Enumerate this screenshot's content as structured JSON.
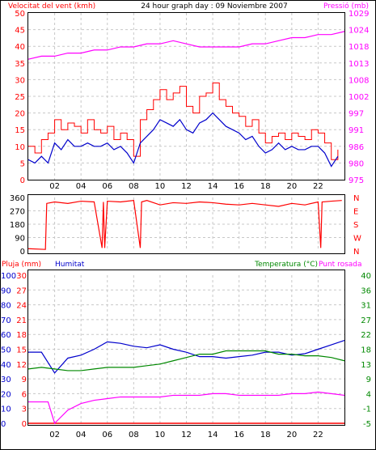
{
  "header": {
    "left_title": "Velocitat del vent (kmh)",
    "center_title": "24 hour graph day : 09 Noviembre 2007",
    "right_title": "Pressió (mb)"
  },
  "colors": {
    "wind": "#ff0000",
    "wind_avg": "#0000cc",
    "pressure": "#ff00ff",
    "direction": "#ff0000",
    "rain": "#ff0000",
    "humidity": "#0000cc",
    "temperature": "#008800",
    "dewpoint": "#ff00ff",
    "left_axis_text": "#ff0000",
    "right_axis_text": "#ff00ff",
    "hum_axis_text": "#0000cc",
    "temp_axis_text": "#008800",
    "grid": "#c8c8c8",
    "frame": "#000000"
  },
  "chart_data": [
    {
      "type": "line",
      "title": "24 hour graph day : 09 Noviembre 2007",
      "ylabel": "Velocitat del vent (kmh)",
      "y2label": "Pressió (mb)",
      "x_ticks": [
        "02",
        "04",
        "06",
        "08",
        "10",
        "12",
        "14",
        "16",
        "18",
        "20",
        "22"
      ],
      "y_ticks": [
        0,
        5,
        10,
        15,
        20,
        25,
        30,
        35,
        40,
        45,
        50
      ],
      "y2_ticks": [
        975,
        980,
        986,
        991,
        997,
        1002,
        1008,
        1013,
        1018,
        1024,
        1029
      ],
      "ylim": [
        0,
        50
      ],
      "y2lim": [
        975,
        1029
      ],
      "xlim": [
        0,
        24
      ],
      "grid": true,
      "series": [
        {
          "axis": "left",
          "x": [
            0,
            0.5,
            1,
            1.5,
            2,
            2.5,
            3,
            3.5,
            4,
            4.5,
            5,
            5.5,
            6,
            6.5,
            7,
            7.5,
            8,
            8.5,
            9,
            9.5,
            10,
            10.5,
            11,
            11.5,
            12,
            12.5,
            13,
            13.5,
            14,
            14.5,
            15,
            15.5,
            16,
            16.5,
            17,
            17.5,
            18,
            18.5,
            19,
            19.5,
            20,
            20.5,
            21,
            21.5,
            22,
            22.5,
            23,
            23.5
          ],
          "values": [
            10,
            8,
            12,
            14,
            18,
            15,
            17,
            16,
            14,
            18,
            15,
            14,
            16,
            12,
            14,
            12,
            7,
            18,
            21,
            24,
            27,
            24,
            26,
            28,
            22,
            20,
            25,
            26,
            29,
            24,
            22,
            20,
            19,
            16,
            18,
            14,
            11,
            13,
            14,
            12,
            14,
            13,
            12,
            15,
            14,
            11,
            6,
            9
          ]
        },
        {
          "axis": "left",
          "x": [
            0,
            0.5,
            1,
            1.5,
            2,
            2.5,
            3,
            3.5,
            4,
            4.5,
            5,
            5.5,
            6,
            6.5,
            7,
            7.5,
            8,
            8.5,
            9,
            9.5,
            10,
            10.5,
            11,
            11.5,
            12,
            12.5,
            13,
            13.5,
            14,
            14.5,
            15,
            15.5,
            16,
            16.5,
            17,
            17.5,
            18,
            18.5,
            19,
            19.5,
            20,
            20.5,
            21,
            21.5,
            22,
            22.5,
            23,
            23.5
          ],
          "values": [
            6,
            5,
            7,
            5,
            11,
            9,
            12,
            10,
            10,
            11,
            10,
            10,
            11,
            9,
            10,
            8,
            5,
            11,
            13,
            15,
            18,
            17,
            16,
            18,
            15,
            14,
            17,
            18,
            20,
            18,
            16,
            15,
            14,
            12,
            13,
            10,
            8,
            9,
            11,
            9,
            10,
            9,
            9,
            10,
            10,
            8,
            4,
            7
          ]
        },
        {
          "axis": "right",
          "x": [
            0,
            1,
            2,
            3,
            4,
            5,
            6,
            7,
            8,
            9,
            10,
            11,
            12,
            13,
            14,
            15,
            16,
            17,
            18,
            19,
            20,
            21,
            22,
            23,
            24
          ],
          "values": [
            1014,
            1015,
            1015,
            1016,
            1016,
            1017,
            1017,
            1018,
            1018,
            1019,
            1019,
            1020,
            1019,
            1018,
            1018,
            1018,
            1018,
            1019,
            1019,
            1020,
            1021,
            1021,
            1022,
            1022,
            1023
          ]
        }
      ]
    },
    {
      "type": "line",
      "ylabel": "",
      "y_ticks": [
        0,
        90,
        180,
        270,
        360
      ],
      "y2_ticks": [
        "N",
        "W",
        "S",
        "E",
        "N"
      ],
      "ylim": [
        0,
        360
      ],
      "xlim": [
        0,
        24
      ],
      "grid": true,
      "series": [
        {
          "x": [
            0,
            1.3,
            1.4,
            2,
            3,
            4,
            5,
            5.6,
            5.7,
            5.8,
            6,
            7,
            8,
            8.5,
            8.6,
            9,
            10,
            11,
            12,
            13,
            14,
            15,
            16,
            17,
            18,
            19,
            20,
            21,
            22,
            22.2,
            22.3,
            23,
            23.8
          ],
          "values": [
            15,
            10,
            320,
            330,
            320,
            335,
            330,
            20,
            330,
            20,
            335,
            330,
            340,
            20,
            330,
            340,
            310,
            325,
            320,
            330,
            325,
            315,
            310,
            320,
            310,
            300,
            320,
            310,
            330,
            20,
            330,
            335,
            340
          ]
        }
      ]
    },
    {
      "type": "line",
      "legend": [
        "Pluja (mm)",
        "Humitat",
        "Temperatura (°C)",
        "Punt rosada"
      ],
      "y_ticks_rain": [
        0,
        3,
        6,
        9,
        12,
        15,
        18,
        21,
        24,
        27,
        30
      ],
      "y_ticks_humidity": [
        0,
        10,
        20,
        30,
        40,
        50,
        60,
        70,
        80,
        90,
        100
      ],
      "y_ticks_temp": [
        -5,
        -1,
        4,
        9,
        13,
        18,
        22,
        27,
        31,
        36,
        40
      ],
      "ylim_rain": [
        0,
        30
      ],
      "ylim_humidity": [
        0,
        100
      ],
      "ylim_temp": [
        -5,
        40
      ],
      "xlim": [
        0,
        24
      ],
      "grid": true,
      "series": [
        {
          "name": "Pluja (mm)",
          "axis": "rain",
          "x": [
            0,
            24
          ],
          "values": [
            0,
            0
          ]
        },
        {
          "name": "Humitat",
          "axis": "humidity",
          "x": [
            0,
            1,
            2,
            3,
            4,
            5,
            6,
            7,
            8,
            9,
            10,
            11,
            12,
            13,
            14,
            15,
            16,
            17,
            18,
            19,
            20,
            21,
            22,
            23,
            24
          ],
          "values": [
            48,
            48,
            34,
            44,
            46,
            50,
            55,
            54,
            52,
            51,
            53,
            50,
            48,
            45,
            45,
            44,
            45,
            46,
            48,
            48,
            46,
            47,
            50,
            53,
            56
          ]
        },
        {
          "name": "Temperatura (°C)",
          "axis": "temp",
          "x": [
            0,
            1,
            2,
            3,
            4,
            5,
            6,
            7,
            8,
            9,
            10,
            11,
            12,
            13,
            14,
            15,
            16,
            17,
            18,
            19,
            20,
            21,
            22,
            23,
            24
          ],
          "values": [
            11.5,
            12,
            11.5,
            11,
            11,
            11.5,
            12,
            12,
            12,
            12.5,
            13,
            14,
            15,
            16,
            16,
            17,
            17,
            17,
            17,
            16,
            16,
            15.5,
            15.5,
            15,
            14
          ]
        },
        {
          "name": "Punt rosada",
          "axis": "temp",
          "x": [
            0,
            0.5,
            1,
            1.5,
            2,
            2.5,
            3,
            4,
            5,
            6,
            7,
            8,
            9,
            10,
            11,
            12,
            13,
            14,
            15,
            16,
            17,
            18,
            19,
            20,
            21,
            22,
            23,
            24
          ],
          "values": [
            1.5,
            1.5,
            1.5,
            1.5,
            -5,
            -3,
            -1,
            1,
            2,
            2.5,
            3,
            3,
            3,
            3,
            3.5,
            3.5,
            3.5,
            4,
            4,
            3.5,
            3.5,
            3.5,
            3.5,
            4,
            4,
            4.5,
            4,
            3.5
          ]
        }
      ]
    }
  ]
}
